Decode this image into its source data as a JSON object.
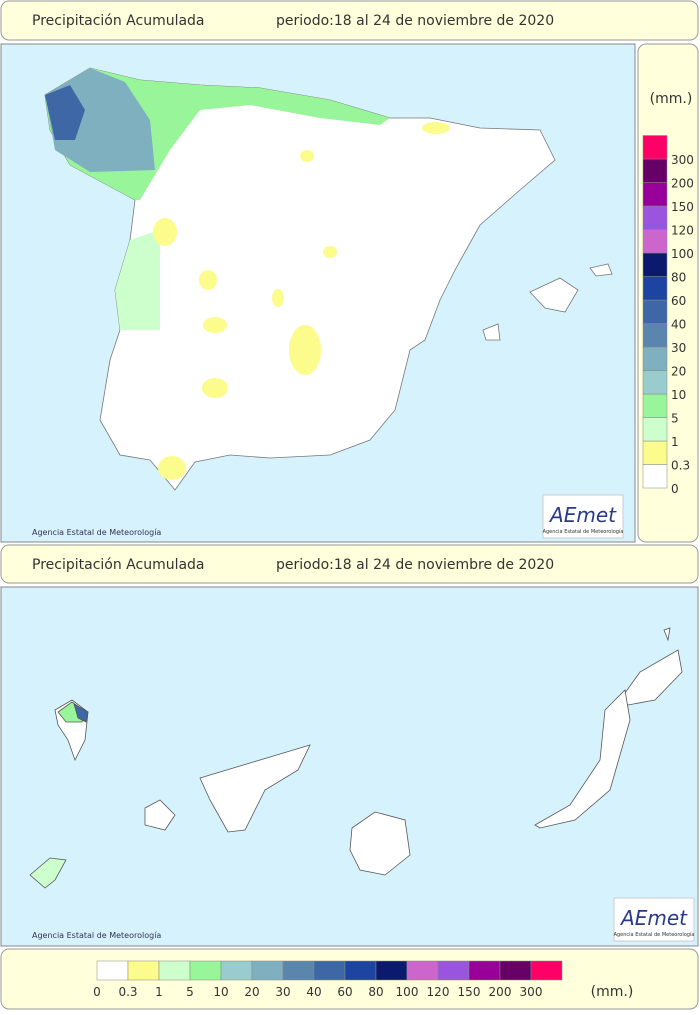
{
  "header_top": {
    "title": "Precipitación Acumulada",
    "period": "periodo:18 al 24 de noviembre de 2020"
  },
  "header_bottom": {
    "title": "Precipitación Acumulada",
    "period": "periodo:18 al 24 de noviembre de 2020"
  },
  "map_top": {
    "credit": "Agencia Estatal de Meteorología",
    "logo": "AEmet",
    "logo_sub": "Agencia Estatal de Meteorología"
  },
  "map_bottom": {
    "credit": "Agencia Estatal de Meteorología",
    "logo": "AEmet",
    "logo_sub": "Agencia Estatal de Meteorología"
  },
  "legend": {
    "unit": "(mm.)",
    "levels": [
      {
        "value": 0,
        "color": "#ffffff"
      },
      {
        "value": 0.3,
        "color": "#fcfc8c"
      },
      {
        "value": 1,
        "color": "#ccffcc"
      },
      {
        "value": 5,
        "color": "#99f599"
      },
      {
        "value": 10,
        "color": "#99cccc"
      },
      {
        "value": 20,
        "color": "#7fb0c0"
      },
      {
        "value": 30,
        "color": "#5a86ad"
      },
      {
        "value": 40,
        "color": "#3e68a5"
      },
      {
        "value": 60,
        "color": "#1c44a0"
      },
      {
        "value": 80,
        "color": "#0b1a6e"
      },
      {
        "value": 100,
        "color": "#cc66cc"
      },
      {
        "value": 120,
        "color": "#9955dd"
      },
      {
        "value": 150,
        "color": "#990099"
      },
      {
        "value": 200,
        "color": "#660066"
      },
      {
        "value": 300,
        "color": "#ff0066"
      }
    ]
  },
  "legend_bottom": {
    "unit": "(mm.)"
  }
}
